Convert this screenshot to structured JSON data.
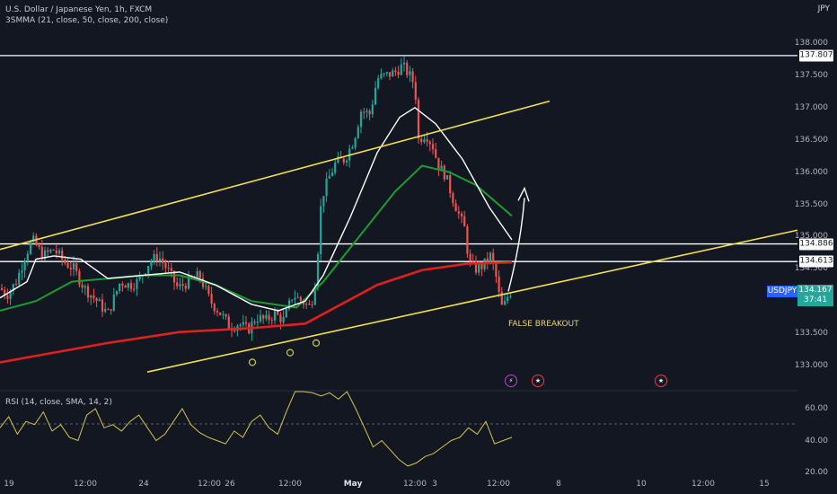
{
  "header": {
    "symbol_line": "U.S. Dollar / Japanese Yen, 1h, FXCM",
    "indicator_line": "3SMMA (21, close, 50, close, 200, close)",
    "currency": "JPY",
    "rsi_label": "RSI (14, close, SMA, 14, 2)"
  },
  "price_tag": {
    "symbol": "USDJPY",
    "price": "134.167",
    "countdown": "37:41"
  },
  "hlines": [
    "137.807",
    "134.886",
    "134.613"
  ],
  "annotation": "FALSE BREAKOUT",
  "colors": {
    "bg": "#131722",
    "up": "#26a69a",
    "down": "#ef5350",
    "ma_fast": "#ffffff",
    "ma_mid": "#1b9e2f",
    "ma_slow": "#e01f1f",
    "trend": "#f4e04d",
    "rsi": "#d4c64a"
  },
  "chart_data": {
    "type": "candlestick",
    "symbol": "USDJPY",
    "timeframe": "1h",
    "y_ticks": [
      "138.000",
      "137.500",
      "137.000",
      "136.500",
      "136.000",
      "135.500",
      "135.000",
      "134.500",
      "133.500",
      "133.000"
    ],
    "x_ticks": [
      "19",
      "12:00",
      "24",
      "12:00",
      "26",
      "12:00",
      "May",
      "12:00",
      "3",
      "12:00",
      "8",
      "10",
      "12:00",
      "15"
    ],
    "ylim": [
      132.9,
      138.3
    ],
    "horizontal_levels": [
      137.807,
      134.886,
      134.613
    ],
    "last_price": 134.167,
    "rsi_ticks": [
      "60.00",
      "40.00",
      "20.00"
    ],
    "rsi_ylim": [
      18,
      70
    ],
    "close_path": [
      {
        "t": 0,
        "p": 134.2
      },
      {
        "t": 8,
        "p": 134.1
      },
      {
        "t": 18,
        "p": 134.3
      },
      {
        "t": 28,
        "p": 134.7
      },
      {
        "t": 36,
        "p": 134.95
      },
      {
        "t": 48,
        "p": 134.7
      },
      {
        "t": 60,
        "p": 134.8
      },
      {
        "t": 72,
        "p": 134.6
      },
      {
        "t": 82,
        "p": 134.5
      },
      {
        "t": 94,
        "p": 134.2
      },
      {
        "t": 108,
        "p": 134.0
      },
      {
        "t": 120,
        "p": 133.8
      },
      {
        "t": 134,
        "p": 134.3
      },
      {
        "t": 144,
        "p": 134.25
      },
      {
        "t": 154,
        "p": 134.3
      },
      {
        "t": 166,
        "p": 134.6
      },
      {
        "t": 176,
        "p": 134.7
      },
      {
        "t": 186,
        "p": 134.5
      },
      {
        "t": 198,
        "p": 134.2
      },
      {
        "t": 210,
        "p": 134.3
      },
      {
        "t": 222,
        "p": 134.4
      },
      {
        "t": 234,
        "p": 134.0
      },
      {
        "t": 246,
        "p": 133.8
      },
      {
        "t": 256,
        "p": 133.6
      },
      {
        "t": 266,
        "p": 133.65
      },
      {
        "t": 276,
        "p": 133.55
      },
      {
        "t": 286,
        "p": 133.75
      },
      {
        "t": 296,
        "p": 133.7
      },
      {
        "t": 306,
        "p": 133.8
      },
      {
        "t": 316,
        "p": 133.7
      },
      {
        "t": 326,
        "p": 134.1
      },
      {
        "t": 336,
        "p": 134.0
      },
      {
        "t": 346,
        "p": 133.9
      },
      {
        "t": 352,
        "p": 134.4
      },
      {
        "t": 358,
        "p": 135.6
      },
      {
        "t": 366,
        "p": 135.9
      },
      {
        "t": 374,
        "p": 136.15
      },
      {
        "t": 384,
        "p": 136.2
      },
      {
        "t": 394,
        "p": 136.5
      },
      {
        "t": 402,
        "p": 136.95
      },
      {
        "t": 412,
        "p": 136.9
      },
      {
        "t": 420,
        "p": 137.45
      },
      {
        "t": 430,
        "p": 137.5
      },
      {
        "t": 440,
        "p": 137.55
      },
      {
        "t": 448,
        "p": 137.65
      },
      {
        "t": 456,
        "p": 137.5
      },
      {
        "t": 462,
        "p": 137.35
      },
      {
        "t": 466,
        "p": 136.5
      },
      {
        "t": 474,
        "p": 136.6
      },
      {
        "t": 482,
        "p": 136.4
      },
      {
        "t": 488,
        "p": 136.1
      },
      {
        "t": 496,
        "p": 135.95
      },
      {
        "t": 504,
        "p": 135.6
      },
      {
        "t": 512,
        "p": 135.3
      },
      {
        "t": 518,
        "p": 135.1
      },
      {
        "t": 522,
        "p": 134.6
      },
      {
        "t": 530,
        "p": 134.5
      },
      {
        "t": 538,
        "p": 134.55
      },
      {
        "t": 546,
        "p": 134.7
      },
      {
        "t": 552,
        "p": 134.4
      },
      {
        "t": 558,
        "p": 133.9
      },
      {
        "t": 562,
        "p": 133.95
      },
      {
        "t": 566,
        "p": 134.1
      },
      {
        "t": 570,
        "p": 134.167
      }
    ],
    "ma_fast": [
      {
        "t": 0,
        "p": 134.05
      },
      {
        "t": 30,
        "p": 134.3
      },
      {
        "t": 40,
        "p": 134.65
      },
      {
        "t": 60,
        "p": 134.7
      },
      {
        "t": 90,
        "p": 134.65
      },
      {
        "t": 120,
        "p": 134.35
      },
      {
        "t": 160,
        "p": 134.4
      },
      {
        "t": 200,
        "p": 134.45
      },
      {
        "t": 240,
        "p": 134.25
      },
      {
        "t": 280,
        "p": 133.95
      },
      {
        "t": 310,
        "p": 133.85
      },
      {
        "t": 340,
        "p": 134.0
      },
      {
        "t": 360,
        "p": 134.4
      },
      {
        "t": 390,
        "p": 135.3
      },
      {
        "t": 420,
        "p": 136.3
      },
      {
        "t": 445,
        "p": 136.85
      },
      {
        "t": 462,
        "p": 137.0
      },
      {
        "t": 485,
        "p": 136.75
      },
      {
        "t": 515,
        "p": 136.2
      },
      {
        "t": 545,
        "p": 135.45
      },
      {
        "t": 570,
        "p": 134.95
      }
    ],
    "ma_mid": [
      {
        "t": 0,
        "p": 133.85
      },
      {
        "t": 40,
        "p": 134.0
      },
      {
        "t": 80,
        "p": 134.3
      },
      {
        "t": 120,
        "p": 134.35
      },
      {
        "t": 160,
        "p": 134.4
      },
      {
        "t": 200,
        "p": 134.4
      },
      {
        "t": 240,
        "p": 134.25
      },
      {
        "t": 280,
        "p": 134.0
      },
      {
        "t": 330,
        "p": 133.9
      },
      {
        "t": 360,
        "p": 134.3
      },
      {
        "t": 400,
        "p": 135.0
      },
      {
        "t": 440,
        "p": 135.7
      },
      {
        "t": 470,
        "p": 136.1
      },
      {
        "t": 500,
        "p": 136.0
      },
      {
        "t": 530,
        "p": 135.8
      },
      {
        "t": 570,
        "p": 135.32
      }
    ],
    "ma_slow": [
      {
        "t": 0,
        "p": 133.05
      },
      {
        "t": 60,
        "p": 133.2
      },
      {
        "t": 120,
        "p": 133.35
      },
      {
        "t": 200,
        "p": 133.52
      },
      {
        "t": 280,
        "p": 133.58
      },
      {
        "t": 340,
        "p": 133.65
      },
      {
        "t": 380,
        "p": 133.95
      },
      {
        "t": 420,
        "p": 134.25
      },
      {
        "t": 470,
        "p": 134.48
      },
      {
        "t": 520,
        "p": 134.58
      },
      {
        "t": 570,
        "p": 134.6
      }
    ],
    "trendlines": [
      {
        "from": [
          0,
          134.8
        ],
        "to": [
          612,
          137.1
        ]
      },
      {
        "from": [
          164,
          132.9
        ],
        "to": [
          888,
          135.1
        ]
      }
    ],
    "rsi": [
      48,
      55,
      44,
      52,
      50,
      58,
      46,
      50,
      42,
      40,
      56,
      60,
      48,
      50,
      46,
      52,
      56,
      48,
      40,
      44,
      52,
      60,
      50,
      45,
      42,
      40,
      38,
      46,
      42,
      52,
      56,
      48,
      44,
      58,
      74,
      72,
      70,
      68,
      70,
      66,
      72,
      60,
      48,
      36,
      40,
      34,
      28,
      24,
      26,
      30,
      32,
      36,
      40,
      42,
      48,
      44,
      52,
      38,
      40,
      42
    ]
  },
  "xlabels": [
    "19",
    "12:00",
    "24",
    "12:00",
    "26",
    "12:00",
    "May",
    "12:00",
    "3",
    "12:00",
    "8",
    "10",
    "12:00",
    "15"
  ],
  "rsi_ticks": [
    "60.00",
    "40.00",
    "20.00"
  ]
}
